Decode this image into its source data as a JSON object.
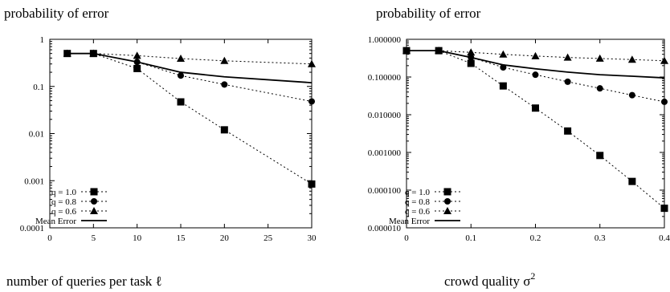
{
  "chart_data": [
    {
      "type": "line",
      "ylabel": "probability of error",
      "xlabel": "number of queries per task ℓ",
      "xlim": [
        0,
        30
      ],
      "ylim": [
        0.0001,
        1
      ],
      "yscale": "log",
      "xticks": [
        0,
        5,
        10,
        15,
        20,
        25,
        30
      ],
      "xtick_labels": [
        "0",
        "5",
        "10",
        "15",
        "20",
        "25",
        "30"
      ],
      "yticks": [
        0.0001,
        0.001,
        0.01,
        0.1,
        1
      ],
      "ytick_labels": [
        "0.0001",
        "0.001",
        "0.01",
        "0.1",
        "1"
      ],
      "legend_position": "bottom-left",
      "series": [
        {
          "name": "q = 1.0",
          "marker": "square",
          "line": "dashed",
          "x": [
            2,
            5,
            10,
            15,
            20,
            30
          ],
          "y": [
            0.5,
            0.5,
            0.24,
            0.047,
            0.012,
            0.00085
          ]
        },
        {
          "name": "q = 0.8",
          "marker": "circle",
          "line": "dashed",
          "x": [
            2,
            5,
            10,
            15,
            20,
            30
          ],
          "y": [
            0.5,
            0.5,
            0.33,
            0.17,
            0.11,
            0.048
          ]
        },
        {
          "name": "q = 0.6",
          "marker": "triangle",
          "line": "dashed",
          "x": [
            2,
            5,
            10,
            15,
            20,
            30
          ],
          "y": [
            0.5,
            0.5,
            0.45,
            0.39,
            0.35,
            0.3
          ]
        },
        {
          "name": "Mean Error",
          "marker": "none",
          "line": "solid",
          "x": [
            2,
            5,
            10,
            15,
            20,
            30
          ],
          "y": [
            0.5,
            0.5,
            0.33,
            0.2,
            0.16,
            0.12
          ]
        }
      ]
    },
    {
      "type": "line",
      "ylabel": "probability of error",
      "xlabel": "crowd quality σ",
      "xlabel_superscript": "2",
      "xlim": [
        0,
        0.4
      ],
      "ylim": [
        1e-05,
        1
      ],
      "yscale": "log",
      "xticks": [
        0,
        0.1,
        0.2,
        0.3,
        0.4
      ],
      "xtick_labels": [
        "0",
        "0.1",
        "0.2",
        "0.3",
        "0.4"
      ],
      "yticks": [
        1e-05,
        0.0001,
        0.001,
        0.01,
        0.1,
        1
      ],
      "ytick_labels": [
        "0.000010",
        "0.000100",
        "0.001000",
        "0.010000",
        "0.100000",
        "1.000000"
      ],
      "legend_position": "bottom-left",
      "series": [
        {
          "name": "q = 1.0",
          "marker": "square",
          "line": "dashed",
          "x": [
            0,
            0.05,
            0.1,
            0.15,
            0.2,
            0.25,
            0.3,
            0.35,
            0.4
          ],
          "y": [
            0.5,
            0.5,
            0.23,
            0.058,
            0.015,
            0.0037,
            0.00083,
            0.00017,
            3.3e-05
          ]
        },
        {
          "name": "q = 0.8",
          "marker": "circle",
          "line": "dashed",
          "x": [
            0,
            0.05,
            0.1,
            0.15,
            0.2,
            0.25,
            0.3,
            0.35,
            0.4
          ],
          "y": [
            0.5,
            0.5,
            0.33,
            0.18,
            0.115,
            0.075,
            0.05,
            0.033,
            0.022
          ]
        },
        {
          "name": "q = 0.6",
          "marker": "triangle",
          "line": "dashed",
          "x": [
            0,
            0.05,
            0.1,
            0.15,
            0.2,
            0.25,
            0.3,
            0.35,
            0.4
          ],
          "y": [
            0.5,
            0.5,
            0.45,
            0.4,
            0.36,
            0.33,
            0.31,
            0.29,
            0.27
          ]
        },
        {
          "name": "Mean Error",
          "marker": "none",
          "line": "solid",
          "x": [
            0,
            0.05,
            0.1,
            0.15,
            0.2,
            0.25,
            0.3,
            0.35,
            0.4
          ],
          "y": [
            0.5,
            0.5,
            0.33,
            0.21,
            0.165,
            0.135,
            0.115,
            0.105,
            0.095
          ]
        }
      ]
    }
  ]
}
